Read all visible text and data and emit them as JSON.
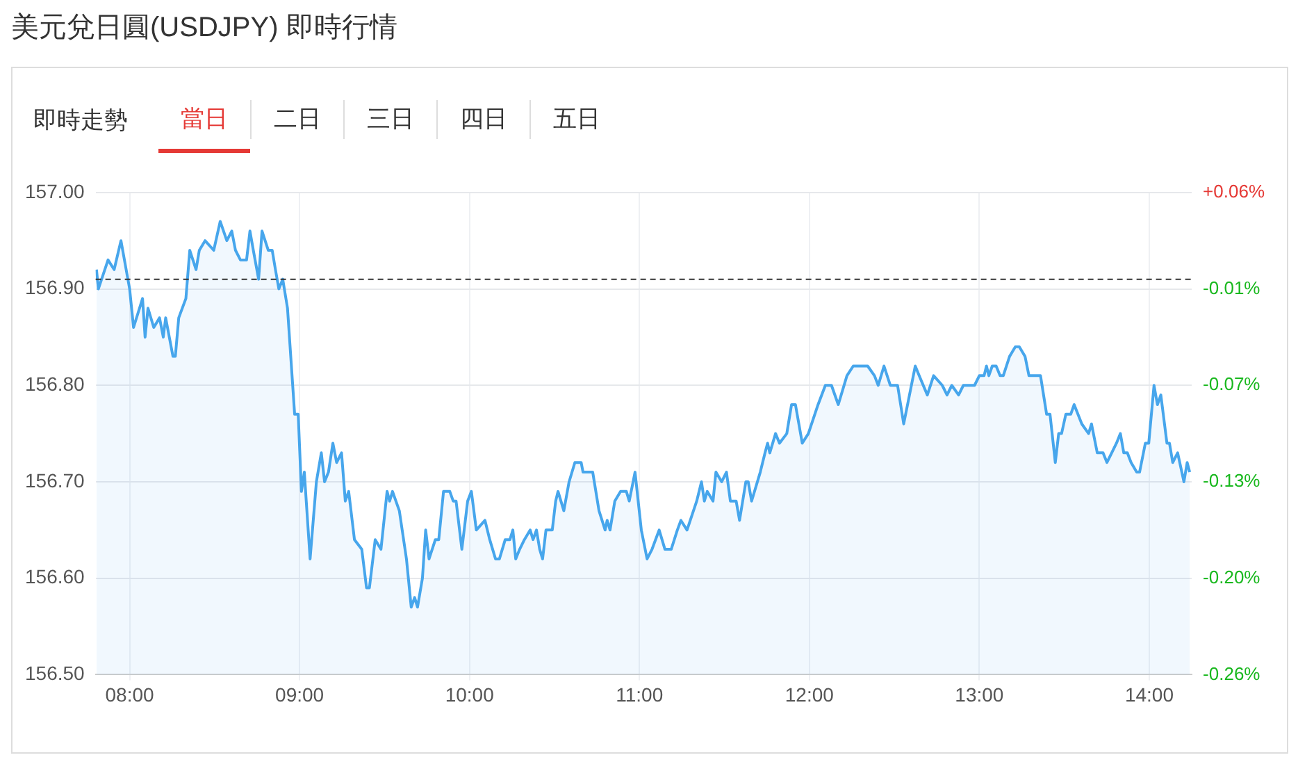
{
  "chart_data": {
    "type": "area",
    "title": "美元兌日圓(USDJPY) 即時行情",
    "subtitle": "即時走勢",
    "annotations": [
      "當日",
      "二日",
      "三日",
      "四日",
      "五日"
    ],
    "grid": true,
    "marker": "none",
    "xlim": [
      7.8,
      14.25
    ],
    "xticks": [
      {
        "value": 8,
        "label": "08:00"
      },
      {
        "value": 9,
        "label": "09:00"
      },
      {
        "value": 10,
        "label": "10:00"
      },
      {
        "value": 11,
        "label": "11:00"
      },
      {
        "value": 12,
        "label": "12:00"
      },
      {
        "value": 13,
        "label": "13:00"
      },
      {
        "value": 14,
        "label": "14:00"
      }
    ],
    "ylim": [
      156.5,
      157
    ],
    "yticks": [
      {
        "value": 156.5,
        "label": "156.50"
      },
      {
        "value": 156.6,
        "label": "156.60"
      },
      {
        "value": 156.7,
        "label": "156.70"
      },
      {
        "value": 156.8,
        "label": "156.80"
      },
      {
        "value": 156.9,
        "label": "156.90"
      },
      {
        "value": 157,
        "label": "157.00"
      }
    ],
    "y2lim": [
      -0.2613,
      0.0574
    ],
    "y2ticks": [
      {
        "value": -0.2613,
        "label": "-0.26%"
      },
      {
        "value": -0.1976,
        "label": "-0.20%"
      },
      {
        "value": -0.1338,
        "label": "-0.13%"
      },
      {
        "value": -0.0701,
        "label": "-0.07%"
      },
      {
        "value": -0.0064,
        "label": "-0.01%"
      },
      {
        "value": 0.0574,
        "label": "+0.06%"
      }
    ],
    "ref_lines": [
      {
        "axis": "y",
        "value": 156.91,
        "color": "#333333",
        "line_style": "dashed"
      }
    ],
    "x": [
      7.805,
      7.816,
      7.873,
      7.909,
      7.949,
      8.0,
      8.023,
      8.076,
      8.091,
      8.108,
      8.142,
      8.176,
      8.198,
      8.212,
      8.255,
      8.269,
      8.289,
      8.331,
      8.354,
      8.391,
      8.41,
      8.444,
      8.495,
      8.533,
      8.572,
      8.601,
      8.623,
      8.652,
      8.688,
      8.708,
      8.728,
      8.759,
      8.779,
      8.816,
      8.839,
      8.858,
      8.878,
      8.901,
      8.929,
      8.971,
      8.992,
      9.011,
      9.028,
      9.062,
      9.099,
      9.128,
      9.147,
      9.17,
      9.196,
      9.218,
      9.247,
      9.269,
      9.289,
      9.323,
      9.366,
      9.394,
      9.411,
      9.445,
      9.479,
      9.515,
      9.53,
      9.547,
      9.587,
      9.629,
      9.657,
      9.677,
      9.694,
      9.723,
      9.742,
      9.762,
      9.799,
      9.819,
      9.847,
      9.884,
      9.904,
      9.921,
      9.955,
      9.989,
      10.011,
      10.04,
      10.091,
      10.119,
      10.153,
      10.176,
      10.21,
      10.238,
      10.255,
      10.272,
      10.295,
      10.323,
      10.357,
      10.374,
      10.394,
      10.413,
      10.43,
      10.45,
      10.487,
      10.507,
      10.521,
      10.555,
      10.586,
      10.62,
      10.657,
      10.668,
      10.725,
      10.762,
      10.798,
      10.81,
      10.827,
      10.855,
      10.889,
      10.923,
      10.94,
      10.974,
      11.011,
      11.045,
      11.074,
      11.116,
      11.15,
      11.187,
      11.223,
      11.244,
      11.28,
      11.337,
      11.365,
      11.382,
      11.399,
      11.433,
      11.45,
      11.484,
      11.512,
      11.535,
      11.569,
      11.589,
      11.626,
      11.64,
      11.66,
      11.711,
      11.739,
      11.754,
      11.767,
      11.801,
      11.824,
      11.867,
      11.895,
      11.918,
      11.958,
      11.994,
      12.051,
      12.094,
      12.13,
      12.17,
      12.221,
      12.258,
      12.343,
      12.383,
      12.405,
      12.439,
      12.476,
      12.519,
      12.555,
      12.589,
      12.623,
      12.646,
      12.694,
      12.731,
      12.782,
      12.81,
      12.838,
      12.878,
      12.906,
      12.972,
      13.0,
      13.028,
      13.042,
      13.056,
      13.076,
      13.099,
      13.122,
      13.141,
      13.178,
      13.212,
      13.235,
      13.269,
      13.292,
      13.36,
      13.396,
      13.416,
      13.447,
      13.467,
      13.484,
      13.509,
      13.538,
      13.558,
      13.603,
      13.643,
      13.66,
      13.694,
      13.728,
      13.751,
      13.779,
      13.807,
      13.83,
      13.85,
      13.871,
      13.893,
      13.926,
      13.943,
      13.977,
      13.997,
      14.028,
      14.048,
      14.068,
      14.104,
      14.119,
      14.138,
      14.167,
      14.204,
      14.223,
      14.238
    ],
    "series": [
      {
        "color": "#47a6ec",
        "values": [
          156.92,
          156.9,
          156.93,
          156.92,
          156.95,
          156.9,
          156.86,
          156.89,
          156.85,
          156.88,
          156.86,
          156.87,
          156.85,
          156.87,
          156.83,
          156.83,
          156.87,
          156.89,
          156.94,
          156.92,
          156.94,
          156.95,
          156.94,
          156.97,
          156.95,
          156.96,
          156.94,
          156.93,
          156.93,
          156.96,
          156.94,
          156.91,
          156.96,
          156.94,
          156.94,
          156.92,
          156.9,
          156.91,
          156.88,
          156.77,
          156.77,
          156.69,
          156.71,
          156.62,
          156.7,
          156.73,
          156.7,
          156.71,
          156.74,
          156.72,
          156.73,
          156.68,
          156.69,
          156.64,
          156.63,
          156.59,
          156.59,
          156.64,
          156.63,
          156.69,
          156.68,
          156.69,
          156.67,
          156.62,
          156.57,
          156.58,
          156.57,
          156.6,
          156.65,
          156.62,
          156.64,
          156.64,
          156.69,
          156.69,
          156.68,
          156.68,
          156.63,
          156.68,
          156.69,
          156.65,
          156.66,
          156.64,
          156.62,
          156.62,
          156.64,
          156.64,
          156.65,
          156.62,
          156.63,
          156.64,
          156.65,
          156.64,
          156.65,
          156.63,
          156.62,
          156.65,
          156.65,
          156.68,
          156.69,
          156.67,
          156.7,
          156.72,
          156.72,
          156.71,
          156.71,
          156.67,
          156.65,
          156.66,
          156.65,
          156.68,
          156.69,
          156.69,
          156.68,
          156.71,
          156.65,
          156.62,
          156.63,
          156.65,
          156.63,
          156.63,
          156.65,
          156.66,
          156.65,
          156.68,
          156.7,
          156.68,
          156.69,
          156.68,
          156.71,
          156.7,
          156.71,
          156.68,
          156.68,
          156.66,
          156.7,
          156.7,
          156.68,
          156.71,
          156.73,
          156.74,
          156.73,
          156.75,
          156.74,
          156.75,
          156.78,
          156.78,
          156.74,
          156.75,
          156.78,
          156.8,
          156.8,
          156.78,
          156.81,
          156.82,
          156.82,
          156.81,
          156.8,
          156.82,
          156.8,
          156.8,
          156.76,
          156.79,
          156.82,
          156.81,
          156.79,
          156.81,
          156.8,
          156.79,
          156.8,
          156.79,
          156.8,
          156.8,
          156.81,
          156.81,
          156.82,
          156.81,
          156.82,
          156.82,
          156.81,
          156.81,
          156.83,
          156.84,
          156.84,
          156.83,
          156.81,
          156.81,
          156.77,
          156.77,
          156.72,
          156.75,
          156.75,
          156.77,
          156.77,
          156.78,
          156.76,
          156.75,
          156.76,
          156.73,
          156.73,
          156.72,
          156.73,
          156.74,
          156.75,
          156.73,
          156.73,
          156.72,
          156.71,
          156.71,
          156.74,
          156.74,
          156.8,
          156.78,
          156.79,
          156.74,
          156.74,
          156.72,
          156.73,
          156.7,
          156.72,
          156.71
        ]
      }
    ]
  }
}
